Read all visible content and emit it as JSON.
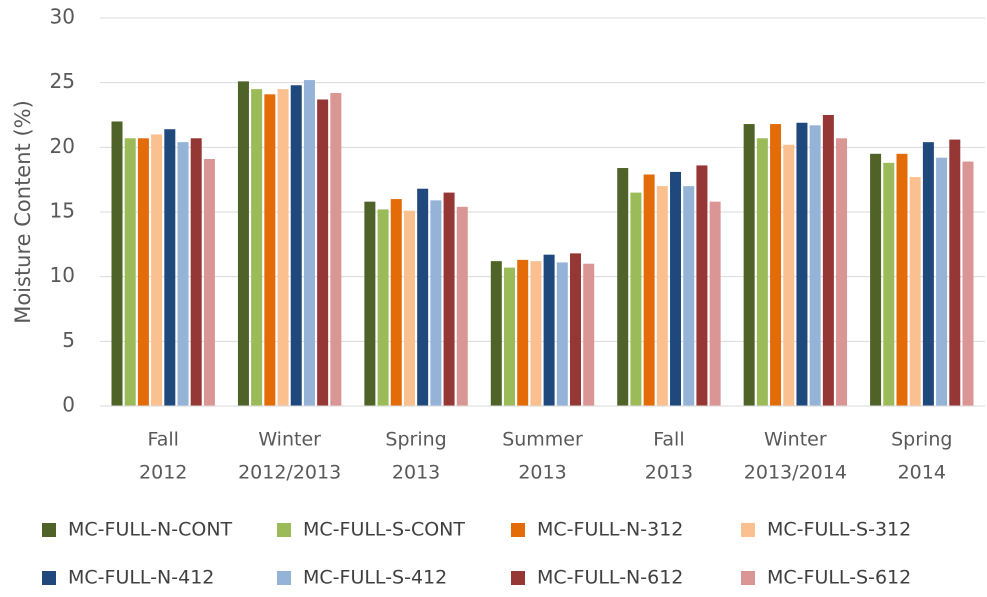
{
  "chart_data": {
    "type": "bar",
    "y_label": "Moisture Content (%)",
    "categories": [
      [
        "Fall",
        "2012"
      ],
      [
        "Winter",
        "2012/2013"
      ],
      [
        "Spring",
        "2013"
      ],
      [
        "Summer",
        "2013"
      ],
      [
        "Fall",
        "2013"
      ],
      [
        "Winter",
        "2013/2014"
      ],
      [
        "Spring",
        "2014"
      ]
    ],
    "series": [
      {
        "name": "MC-FULL-N-CONT",
        "color": "#4f6228",
        "values": [
          22.0,
          25.1,
          15.8,
          11.2,
          18.4,
          21.8,
          19.5
        ]
      },
      {
        "name": "MC-FULL-S-CONT",
        "color": "#9bbb59",
        "values": [
          20.7,
          24.5,
          15.2,
          10.7,
          16.5,
          20.7,
          18.8
        ]
      },
      {
        "name": "MC-FULL-N-312",
        "color": "#e36c09",
        "values": [
          20.7,
          24.1,
          16.0,
          11.3,
          17.9,
          21.8,
          19.5
        ]
      },
      {
        "name": "MC-FULL-S-312",
        "color": "#fac090",
        "values": [
          21.0,
          24.5,
          15.1,
          11.2,
          17.0,
          20.2,
          17.7
        ]
      },
      {
        "name": "MC-FULL-N-412",
        "color": "#1f497d",
        "values": [
          21.4,
          24.8,
          16.8,
          11.7,
          18.1,
          21.9,
          20.4
        ]
      },
      {
        "name": "MC-FULL-S-412",
        "color": "#95b3d7",
        "values": [
          20.4,
          25.2,
          15.9,
          11.1,
          17.0,
          21.7,
          19.2
        ]
      },
      {
        "name": "MC-FULL-N-612",
        "color": "#953735",
        "values": [
          20.7,
          23.7,
          16.5,
          11.8,
          18.6,
          22.5,
          20.6
        ]
      },
      {
        "name": "MC-FULL-S-612",
        "color": "#d99694",
        "values": [
          19.1,
          24.2,
          15.4,
          11.0,
          15.8,
          20.7,
          18.9
        ]
      }
    ],
    "ylim": [
      0,
      30
    ],
    "yticks": [
      0,
      5,
      10,
      15,
      20,
      25,
      30
    ],
    "grid": true,
    "legend": "bottom"
  }
}
